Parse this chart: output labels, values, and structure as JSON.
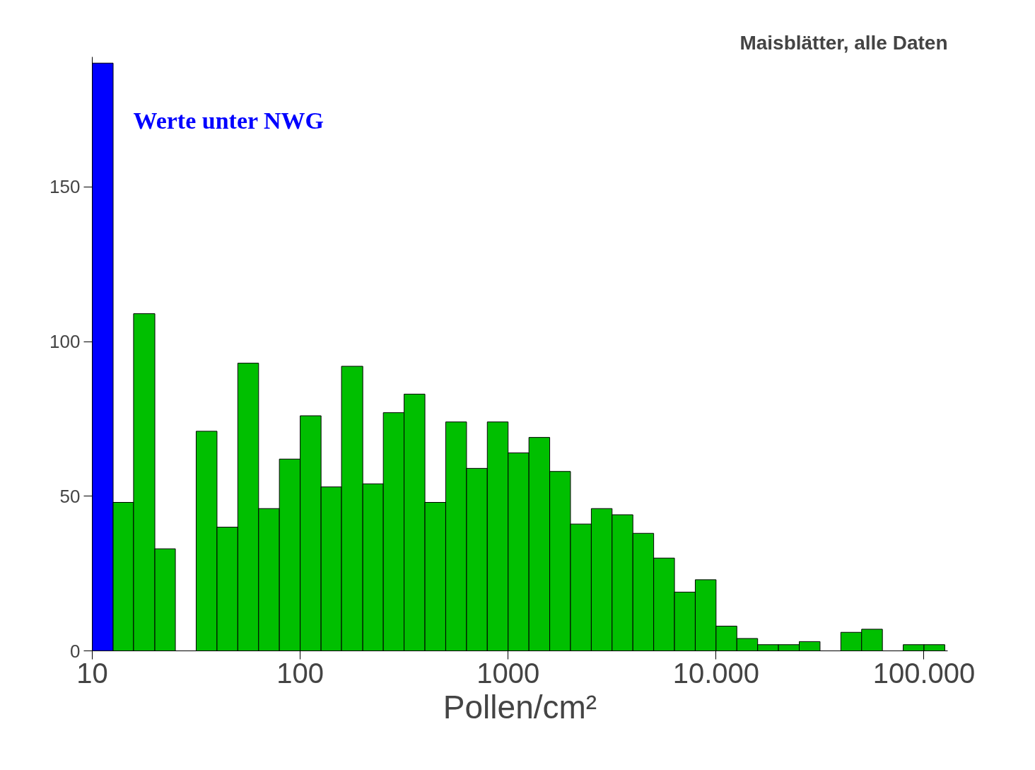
{
  "chart_data": {
    "type": "histogram",
    "title": "Maisblätter, alle Daten",
    "xlabel": "Pollen/cm²",
    "annotations": [
      "Werte unter NWG"
    ],
    "bins": [
      10,
      12.6,
      15.8,
      20,
      25.1,
      31.6,
      39.8,
      50.1,
      63.1,
      79.4,
      100,
      126,
      158,
      200,
      251,
      316,
      398,
      501,
      631,
      794,
      1000,
      1259,
      1585,
      1995,
      2512,
      3162,
      3981,
      5012,
      6310,
      7943,
      10000,
      12589,
      15849,
      19953,
      25119,
      31623,
      39811,
      50119,
      63096,
      79433,
      100000,
      125893
    ],
    "values": [
      190,
      48,
      109,
      33,
      0,
      71,
      40,
      93,
      46,
      62,
      76,
      53,
      92,
      54,
      77,
      83,
      48,
      74,
      59,
      74,
      64,
      69,
      58,
      41,
      46,
      44,
      38,
      30,
      19,
      23,
      8,
      4,
      2,
      2,
      3,
      0,
      6,
      7,
      0,
      2,
      2
    ],
    "colors": [
      "#0000ff",
      "#00bf00",
      "#00bf00",
      "#00bf00",
      "#00bf00",
      "#00bf00",
      "#00bf00",
      "#00bf00",
      "#00bf00",
      "#00bf00",
      "#00bf00",
      "#00bf00",
      "#00bf00",
      "#00bf00",
      "#00bf00",
      "#00bf00",
      "#00bf00",
      "#00bf00",
      "#00bf00",
      "#00bf00",
      "#00bf00",
      "#00bf00",
      "#00bf00",
      "#00bf00",
      "#00bf00",
      "#00bf00",
      "#00bf00",
      "#00bf00",
      "#00bf00",
      "#00bf00",
      "#00bf00",
      "#00bf00",
      "#00bf00",
      "#00bf00",
      "#00bf00",
      "#00bf00",
      "#00bf00",
      "#00bf00",
      "#00bf00",
      "#00bf00",
      "#00bf00"
    ],
    "log": "x",
    "xlim": [
      10,
      130000
    ],
    "ylim": [
      0,
      192
    ],
    "xticks": [
      10,
      100,
      1000,
      {
        "value": 10000,
        "label": "10.000"
      },
      {
        "value": 100000,
        "label": "100.000"
      }
    ],
    "yticks": [
      0,
      50,
      100,
      150
    ],
    "grid": false
  }
}
